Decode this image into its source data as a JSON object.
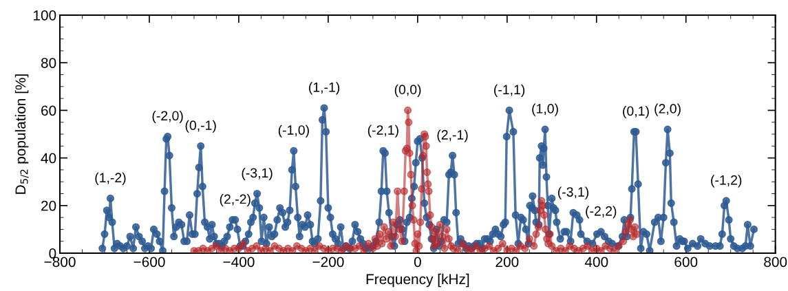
{
  "chart_data": {
    "type": "line",
    "xlabel": "Frequency [kHz]",
    "ylabel": "D$_{5/2}$ population [%]",
    "xlim": [
      -800,
      800
    ],
    "xticks": [
      {
        "value": -800,
        "label": "−800"
      },
      {
        "value": -600,
        "label": "−600"
      },
      {
        "value": -400,
        "label": "−400"
      },
      {
        "value": -200,
        "label": "−200"
      },
      0,
      200,
      400,
      600,
      800
    ],
    "ylim": [
      0,
      100
    ],
    "yticks": [
      0,
      20,
      40,
      60,
      80,
      100
    ],
    "grid": false,
    "marker": "circle",
    "line_style": "solid",
    "series": [
      {
        "color": "#2d5b93",
        "x": [
          -705,
          -700,
          -695,
          -690,
          -687,
          -683,
          -678,
          -672,
          -665,
          -658,
          -650,
          -643,
          -636,
          -630,
          -623,
          -616,
          -610,
          -603,
          -596,
          -590,
          -583,
          -577,
          -570,
          -566,
          -562,
          -559,
          -555,
          -550,
          -545,
          -540,
          -534,
          -528,
          -522,
          -516,
          -510,
          -504,
          -498,
          -493,
          -489,
          -485,
          -481,
          -476,
          -470,
          -465,
          -460,
          -455,
          -450,
          -444,
          -438,
          -432,
          -426,
          -420,
          -414,
          -408,
          -403,
          -397,
          -391,
          -385,
          -378,
          -373,
          -368,
          -364,
          -359,
          -354,
          -349,
          -344,
          -338,
          -332,
          -326,
          -320,
          -314,
          -308,
          -302,
          -296,
          -291,
          -286,
          -281,
          -277,
          -273,
          -268,
          -264,
          -258,
          -252,
          -246,
          -240,
          -235,
          -230,
          -223,
          -217,
          -213,
          -209,
          -205,
          -200,
          -195,
          -190,
          -184,
          -178,
          -172,
          -166,
          -160,
          -153,
          -146,
          -140,
          -134,
          -128,
          -122,
          -116,
          -108,
          -100,
          -93,
          -86,
          -81,
          -77,
          -73,
          -69,
          -64,
          -58,
          -52,
          -46,
          -40,
          -35,
          -29,
          -24,
          -18,
          -13,
          -8,
          -4,
          0,
          5,
          10,
          15,
          20,
          26,
          31,
          36,
          42,
          48,
          53,
          59,
          65,
          70,
          74,
          78,
          82,
          86,
          91,
          96,
          102,
          108,
          114,
          120,
          126,
          132,
          138,
          144,
          150,
          156,
          162,
          168,
          174,
          180,
          186,
          192,
          196,
          199,
          205,
          214,
          219,
          225,
          231,
          236,
          242,
          248,
          251,
          256,
          257,
          262,
          265,
          271,
          273,
          277,
          280,
          282,
          285,
          288,
          291,
          294,
          300,
          304,
          308,
          311,
          319,
          328,
          333,
          342,
          348,
          356,
          362,
          365,
          379,
          391,
          401,
          410,
          418,
          427,
          435,
          448,
          458,
          462,
          468,
          476,
          479,
          484,
          488,
          493,
          499,
          505,
          512,
          519,
          530,
          538,
          544,
          550,
          555,
          559,
          564,
          567,
          573,
          579,
          586,
          592,
          596,
          604,
          615,
          626,
          633,
          643,
          653,
          666,
          676,
          681,
          686,
          690,
          696,
          700,
          707,
          715,
          726,
          733,
          738,
          744,
          752
        ],
        "values": [
          2,
          8,
          18,
          15,
          23,
          13,
          2,
          4,
          3,
          2,
          3,
          7,
          2,
          11,
          7,
          5,
          2,
          3,
          2,
          10,
          8,
          5,
          1,
          26,
          48,
          49,
          41,
          19,
          7,
          11,
          13,
          12,
          5,
          5,
          16,
          8,
          8,
          25,
          36,
          45,
          28,
          13,
          11,
          6,
          12,
          7,
          4,
          4,
          3,
          5,
          7,
          11,
          14,
          14,
          10,
          3,
          3,
          5,
          8,
          13,
          15,
          21,
          25,
          19,
          5,
          15,
          4,
          11,
          7,
          8,
          14,
          19,
          17,
          11,
          13,
          18,
          35,
          43,
          28,
          15,
          7,
          12,
          11,
          16,
          12,
          5,
          4,
          6,
          22,
          56,
          61,
          51,
          19,
          15,
          8,
          6,
          4,
          11,
          2,
          3,
          2,
          5,
          12,
          9,
          6,
          4,
          2,
          2,
          3,
          5,
          13,
          26,
          43,
          42,
          26,
          17,
          7,
          3,
          12,
          14,
          10,
          5,
          13,
          15,
          23,
          28,
          38,
          47,
          48,
          40,
          21,
          15,
          12,
          6,
          2,
          10,
          3,
          5,
          14,
          13,
          33,
          34,
          41,
          33,
          17,
          4,
          6,
          4,
          2,
          3,
          2,
          3,
          4,
          4,
          2,
          6,
          6,
          5,
          8,
          10,
          8,
          7,
          12,
          13,
          49,
          60,
          51,
          16,
          4,
          15,
          14,
          10,
          4,
          20,
          19,
          24,
          18,
          13,
          12,
          40,
          45,
          37,
          44,
          52,
          32,
          20,
          8,
          23,
          19,
          18,
          13,
          6,
          9,
          9,
          5,
          17,
          16,
          14,
          8,
          5,
          4,
          8,
          9,
          7,
          5,
          4,
          3,
          7,
          14,
          7,
          15,
          27,
          51,
          51,
          29,
          2,
          9,
          8,
          1,
          13,
          15,
          5,
          15,
          38,
          52,
          42,
          21,
          13,
          3,
          6,
          5,
          5,
          2,
          4,
          3,
          6,
          4,
          3,
          3,
          3,
          8,
          20,
          22,
          14,
          6,
          3,
          2,
          2,
          3,
          12,
          3,
          10
        ]
      },
      {
        "color": "#b5282a",
        "x": [
          -500,
          -490,
          -480,
          -470,
          -460,
          -450,
          -440,
          -430,
          -420,
          -410,
          -400,
          -390,
          -380,
          -370,
          -360,
          -350,
          -340,
          -330,
          -320,
          -310,
          -300,
          -290,
          -280,
          -270,
          -260,
          -250,
          -240,
          -230,
          -220,
          -210,
          -200,
          -190,
          -180,
          -170,
          -160,
          -150,
          -140,
          -130,
          -120,
          -110,
          -100,
          -95,
          -90,
          -85,
          -80,
          -75,
          -70,
          -65,
          -60,
          -55,
          -50,
          -45,
          -40,
          -35,
          -30,
          -27,
          -24,
          -22,
          -20,
          -18,
          -15,
          -12,
          -9,
          -6,
          -3,
          0,
          3,
          6,
          9,
          12,
          15,
          17,
          19,
          21,
          23,
          25,
          28,
          31,
          34,
          37,
          40,
          45,
          50,
          55,
          60,
          65,
          70,
          75,
          80,
          90,
          100,
          110,
          120,
          130,
          140,
          150,
          160,
          170,
          180,
          190,
          200,
          210,
          220,
          230,
          240,
          250,
          260,
          265,
          270,
          274,
          277,
          280,
          283,
          286,
          289,
          292,
          296,
          300,
          310,
          320,
          330,
          340,
          350,
          360,
          370,
          380,
          390,
          400,
          410,
          420,
          430,
          440,
          450,
          460,
          465,
          470,
          475,
          478,
          482,
          486,
          490
        ],
        "values": [
          1,
          1,
          2,
          1,
          2,
          3,
          1,
          2,
          1,
          2,
          2,
          4,
          1,
          2,
          3,
          1,
          2,
          1,
          3,
          2,
          1,
          2,
          1,
          3,
          2,
          1,
          2,
          1,
          3,
          2,
          1,
          2,
          2,
          1,
          3,
          2,
          2,
          3,
          1,
          4,
          2,
          6,
          3,
          8,
          4,
          11,
          6,
          9,
          3,
          13,
          7,
          26,
          10,
          5,
          26,
          43,
          44,
          60,
          55,
          42,
          33,
          20,
          14,
          4,
          1,
          8,
          3,
          13,
          27,
          41,
          50,
          49,
          45,
          34,
          29,
          26,
          16,
          11,
          6,
          3,
          9,
          4,
          12,
          7,
          2,
          10,
          6,
          3,
          2,
          1,
          4,
          2,
          1,
          3,
          1,
          2,
          3,
          1,
          2,
          4,
          1,
          2,
          1,
          3,
          2,
          6,
          3,
          8,
          11,
          18,
          22,
          20,
          16,
          10,
          6,
          4,
          8,
          3,
          1,
          2,
          1,
          3,
          2,
          1,
          2,
          3,
          1,
          2,
          1,
          3,
          2,
          1,
          3,
          5,
          9,
          12,
          14,
          10,
          7,
          11,
          8
        ]
      }
    ],
    "annotations": [
      {
        "text": "(1,-2)",
        "x": -687,
        "y": 23
      },
      {
        "text": "(-2,0)",
        "x": -559,
        "y": 49
      },
      {
        "text": "(0,-1)",
        "x": -485,
        "y": 45
      },
      {
        "text": "(2,-2)",
        "x": -408,
        "y": 14
      },
      {
        "text": "(-3,1)",
        "x": -359,
        "y": 25
      },
      {
        "text": "(-1,0)",
        "x": -277,
        "y": 43
      },
      {
        "text": "(1,-1)",
        "x": -209,
        "y": 61
      },
      {
        "text": "(-2,1)",
        "x": -77,
        "y": 43
      },
      {
        "text": "(0,0)",
        "x": -22,
        "y": 60
      },
      {
        "text": "(2,-1)",
        "x": 78,
        "y": 41
      },
      {
        "text": "(-1,1)",
        "x": 205,
        "y": 60
      },
      {
        "text": "(1,0)",
        "x": 285,
        "y": 52
      },
      {
        "text": "(-3,1)",
        "x": 348,
        "y": 17
      },
      {
        "text": "(-2,2)",
        "x": 410,
        "y": 9
      },
      {
        "text": "(0,1)",
        "x": 488,
        "y": 51
      },
      {
        "text": "(2,0)",
        "x": 559,
        "y": 52
      },
      {
        "text": "(-1,2)",
        "x": 690,
        "y": 22
      }
    ]
  }
}
